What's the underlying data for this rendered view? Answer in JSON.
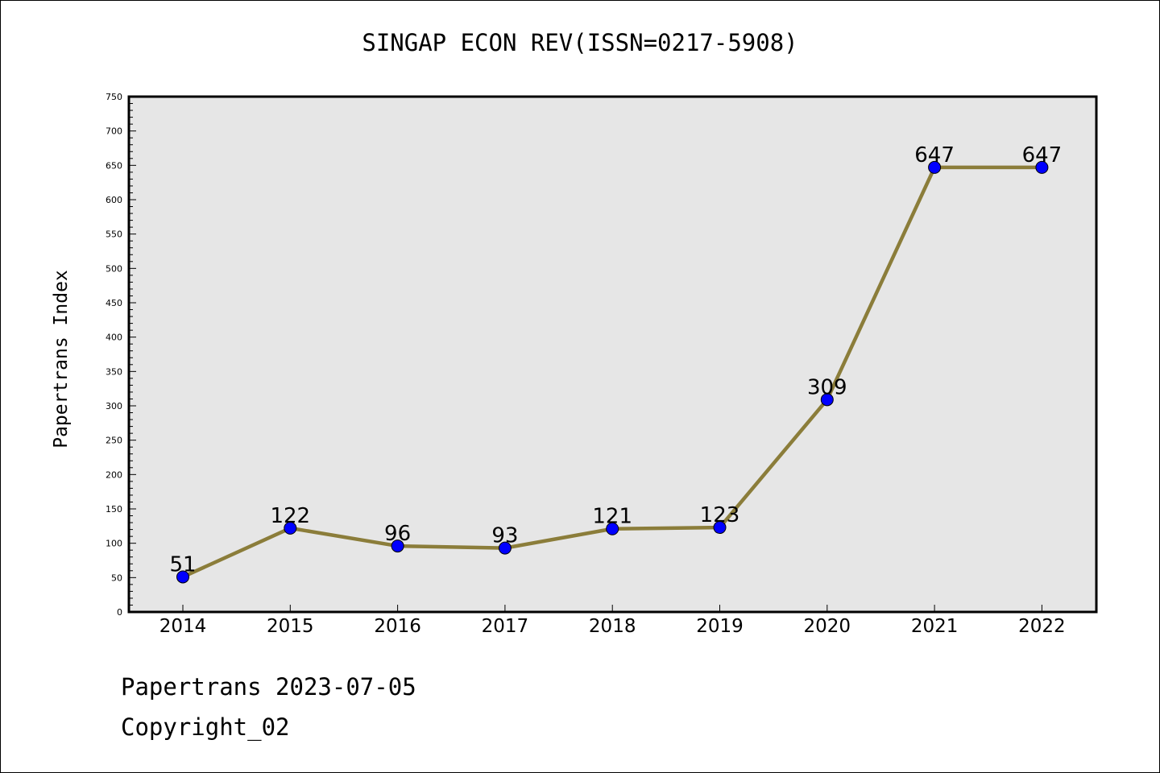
{
  "title": "SINGAP ECON REV(ISSN=0217-5908)",
  "footer": {
    "line1": "Papertrans 2023-07-05",
    "line2": "Copyright_02"
  },
  "chart_data": {
    "type": "line",
    "title": "SINGAP ECON REV(ISSN=0217-5908)",
    "xlabel": "",
    "ylabel": "Papertrans Index",
    "categories": [
      "2014",
      "2015",
      "2016",
      "2017",
      "2018",
      "2019",
      "2020",
      "2021",
      "2022"
    ],
    "values": [
      51,
      122,
      96,
      93,
      121,
      123,
      309,
      647,
      647
    ],
    "ylim": [
      0,
      750
    ],
    "yticks": [
      0,
      50,
      100,
      150,
      200,
      250,
      300,
      350,
      400,
      450,
      500,
      550,
      600,
      650,
      700,
      750
    ],
    "grid": false,
    "legend": "none",
    "colors": {
      "plot_background": "#e6e6e6",
      "line": "#8b7d3a",
      "marker": "#0000ff"
    }
  }
}
